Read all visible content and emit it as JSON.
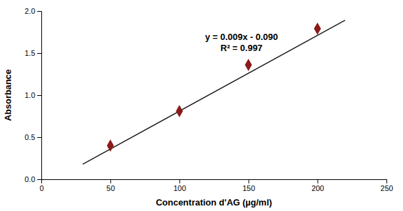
{
  "chart_data": {
    "type": "scatter",
    "xlabel": "Concentration d'AG (µg/ml)",
    "ylabel": "Absorbance",
    "annotations": [
      "y = 0.009x - 0.090",
      "R² = 0.997"
    ],
    "series": [
      {
        "type": "line",
        "color": "#1a1a1a",
        "x": [
          30,
          220
        ],
        "values": [
          0.18,
          1.89
        ]
      },
      {
        "type": "scatter",
        "color": "#8B1A1A",
        "marker": "diamond",
        "x": [
          50,
          100,
          150,
          200
        ],
        "values": [
          0.4,
          0.81,
          1.36,
          1.79
        ]
      }
    ],
    "xlim": [
      0,
      250
    ],
    "ylim": [
      0,
      2.0
    ],
    "xticks": [
      0,
      50,
      100,
      150,
      200,
      250
    ],
    "yticks": [
      {
        "value": 0,
        "label": "0.0"
      },
      0.5,
      {
        "value": 1.0,
        "label": "1.0"
      },
      1.5,
      {
        "value": 2.0,
        "label": "2.0"
      }
    ],
    "grid": false
  }
}
